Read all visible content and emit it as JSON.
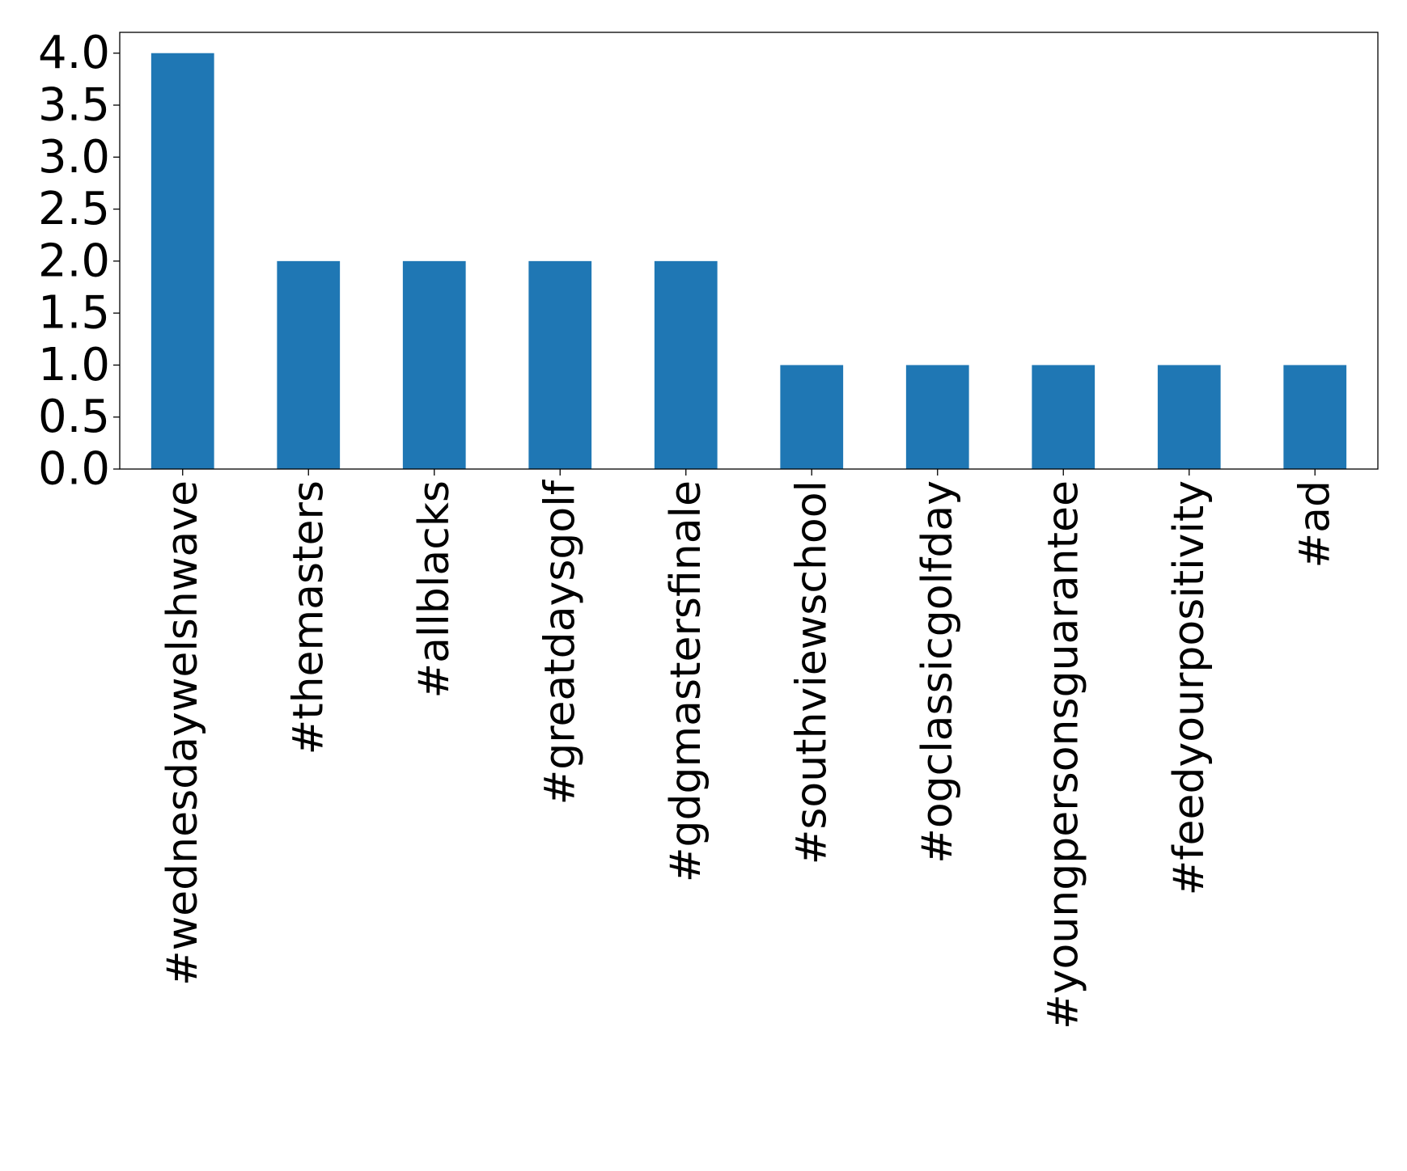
{
  "chart_data": {
    "type": "bar",
    "title": "",
    "xlabel": "",
    "ylabel": "",
    "categories": [
      "#wednesdaywelshwave",
      "#themasters",
      "#allblacks",
      "#greatdaysgolf",
      "#gdgmastersfinale",
      "#southviewschool",
      "#ogclassicgolfday",
      "#youngpersonsguarantee",
      "#feedyourpositivity",
      "#ad"
    ],
    "values": [
      4,
      2,
      2,
      2,
      2,
      1,
      1,
      1,
      1,
      1
    ],
    "ylim": [
      0,
      4.2
    ],
    "yticks": [
      "0.0",
      "0.5",
      "1.0",
      "1.5",
      "2.0",
      "2.5",
      "3.0",
      "3.5",
      "4.0"
    ],
    "grid": false,
    "legend": "none",
    "bar_color": "#1f77b4"
  }
}
